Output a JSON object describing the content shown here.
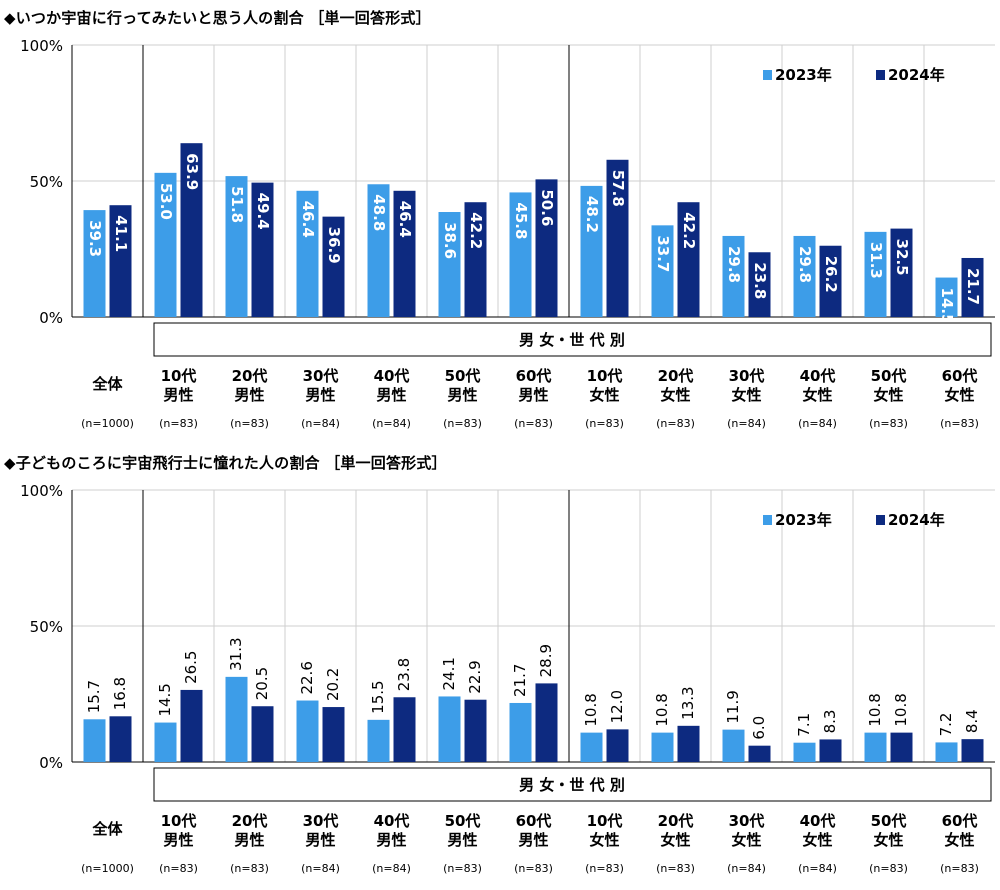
{
  "colors": {
    "y2023": "#3d9de8",
    "y2024": "#0d2a80",
    "grid": "#cfcfcf",
    "axis": "#000000"
  },
  "legend": {
    "y2023": "2023年",
    "y2024": "2024年"
  },
  "group_header": "男 女・世 代 別",
  "y_ticks": [
    "0%",
    "50%",
    "100%"
  ],
  "categories": [
    {
      "name": "全体",
      "line2": "",
      "n": "(n=1000)"
    },
    {
      "name": "10代",
      "line2": "男性",
      "n": "(n=83)"
    },
    {
      "name": "20代",
      "line2": "男性",
      "n": "(n=83)"
    },
    {
      "name": "30代",
      "line2": "男性",
      "n": "(n=84)"
    },
    {
      "name": "40代",
      "line2": "男性",
      "n": "(n=84)"
    },
    {
      "name": "50代",
      "line2": "男性",
      "n": "(n=83)"
    },
    {
      "name": "60代",
      "line2": "男性",
      "n": "(n=83)"
    },
    {
      "name": "10代",
      "line2": "女性",
      "n": "(n=83)"
    },
    {
      "name": "20代",
      "line2": "女性",
      "n": "(n=83)"
    },
    {
      "name": "30代",
      "line2": "女性",
      "n": "(n=84)"
    },
    {
      "name": "40代",
      "line2": "女性",
      "n": "(n=84)"
    },
    {
      "name": "50代",
      "line2": "女性",
      "n": "(n=83)"
    },
    {
      "name": "60代",
      "line2": "女性",
      "n": "(n=83)"
    }
  ],
  "chart_data": [
    {
      "type": "bar",
      "title": "◆いつか宇宙に行ってみたいと思う人の割合 ［単一回答形式］",
      "ylim": [
        0,
        100
      ],
      "grid": true,
      "legend_position": "top-right",
      "series": [
        {
          "name": "2023年",
          "values": [
            39.3,
            53.0,
            51.8,
            46.4,
            48.8,
            38.6,
            45.8,
            48.2,
            33.7,
            29.8,
            29.8,
            31.3,
            14.5
          ]
        },
        {
          "name": "2024年",
          "values": [
            41.1,
            63.9,
            49.4,
            36.9,
            46.4,
            42.2,
            50.6,
            57.8,
            42.2,
            23.8,
            26.2,
            32.5,
            21.7
          ]
        }
      ]
    },
    {
      "type": "bar",
      "title": "◆子どものころに宇宙飛行士に憧れた人の割合 ［単一回答形式］",
      "ylim": [
        0,
        100
      ],
      "grid": true,
      "legend_position": "top-right",
      "series": [
        {
          "name": "2023年",
          "values": [
            15.7,
            14.5,
            31.3,
            22.6,
            15.5,
            24.1,
            21.7,
            10.8,
            10.8,
            11.9,
            7.1,
            10.8,
            7.2
          ]
        },
        {
          "name": "2024年",
          "values": [
            16.8,
            26.5,
            20.5,
            20.2,
            23.8,
            22.9,
            28.9,
            12.0,
            13.3,
            6.0,
            8.3,
            10.8,
            8.4
          ]
        }
      ]
    }
  ]
}
